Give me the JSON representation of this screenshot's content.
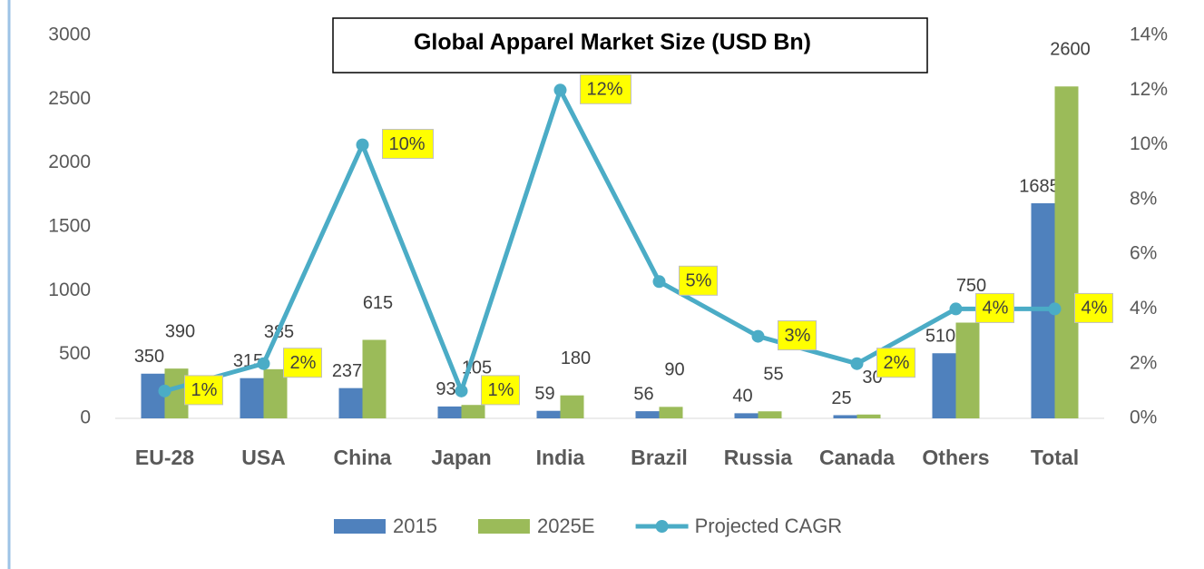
{
  "chart_data": {
    "type": "bar-line",
    "title": "Global Apparel Market Size (USD Bn)",
    "categories": [
      "EU-28",
      "USA",
      "China",
      "Japan",
      "India",
      "Brazil",
      "Russia",
      "Canada",
      "Others",
      "Total"
    ],
    "series": [
      {
        "name": "2015",
        "type": "bar",
        "color": "#4f81bd",
        "values": [
          350,
          315,
          237,
          93,
          59,
          56,
          40,
          25,
          510,
          1685
        ]
      },
      {
        "name": "2025E",
        "type": "bar",
        "color": "#9bbb59",
        "values": [
          390,
          385,
          615,
          105,
          180,
          90,
          55,
          30,
          750,
          2600
        ]
      },
      {
        "name": "Projected CAGR",
        "type": "line",
        "axis": "y2",
        "color": "#4bacc6",
        "values": [
          1,
          2,
          10,
          1,
          12,
          5,
          3,
          2,
          4,
          4
        ],
        "value_labels": [
          "1%",
          "2%",
          "10%",
          "1%",
          "12%",
          "5%",
          "3%",
          "2%",
          "4%",
          "4%"
        ]
      }
    ],
    "ylim": [
      0,
      3000
    ],
    "yticks": [
      0,
      500,
      1000,
      1500,
      2000,
      2500,
      3000
    ],
    "y2lim": [
      0,
      14
    ],
    "y2ticks": [
      {
        "value": 0,
        "label": "0%"
      },
      {
        "value": 2,
        "label": "2%"
      },
      {
        "value": 4,
        "label": "4%"
      },
      {
        "value": 6,
        "label": "6%"
      },
      {
        "value": 8,
        "label": "8%"
      },
      {
        "value": 10,
        "label": "10%"
      },
      {
        "value": 12,
        "label": "12%"
      },
      {
        "value": 14,
        "label": "14%"
      }
    ],
    "legend": "bottom"
  }
}
